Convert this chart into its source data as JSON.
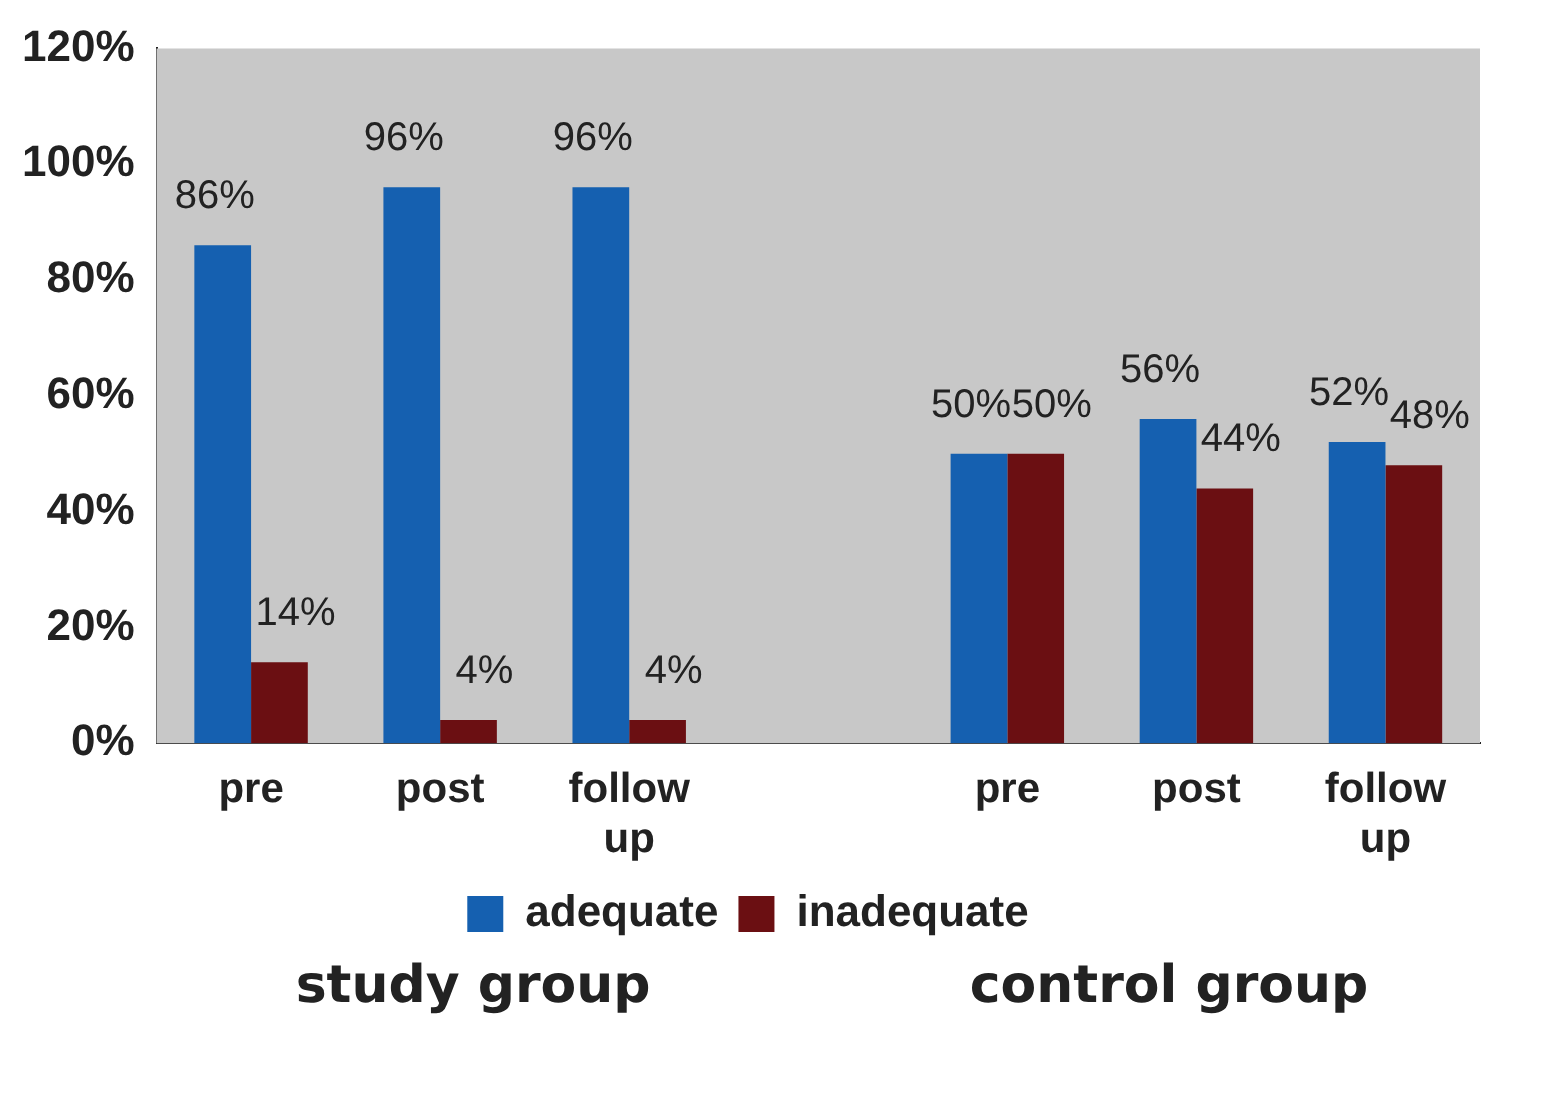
{
  "chart_data": {
    "type": "bar",
    "categories": [
      "pre",
      "post",
      "follow up",
      null,
      "pre",
      "post",
      "follow up"
    ],
    "series": [
      {
        "name": "adequate",
        "color": "#1560b0",
        "values": [
          86,
          96,
          96,
          null,
          50,
          56,
          52
        ],
        "value_labels": [
          "86%",
          "96%",
          "96%",
          null,
          "50%",
          "56%",
          "52%"
        ]
      },
      {
        "name": "inadequate",
        "color": "#6b0f12",
        "values": [
          14,
          4,
          4,
          null,
          50,
          44,
          48
        ],
        "value_labels": [
          "14%",
          "4%",
          "4%",
          null,
          "50%",
          "44%",
          "48%"
        ]
      }
    ],
    "ylim": [
      0,
      120
    ],
    "yticks": [
      {
        "value": 0,
        "label": "0%"
      },
      {
        "value": 20,
        "label": "20%"
      },
      {
        "value": 40,
        "label": "40%"
      },
      {
        "value": 60,
        "label": "60%"
      },
      {
        "value": 80,
        "label": "80%"
      },
      {
        "value": 100,
        "label": "100%"
      },
      {
        "value": 120,
        "label": "120%"
      }
    ],
    "grid": false,
    "legend": "bottom",
    "annotations": [
      "study group",
      "control group"
    ]
  }
}
